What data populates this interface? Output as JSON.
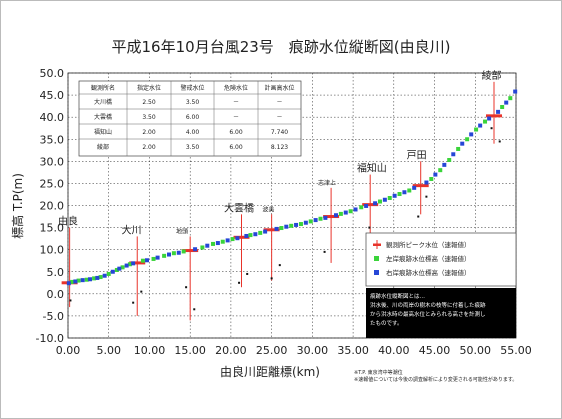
{
  "chart_data": {
    "type": "scatter",
    "title": "平成16年10月台風23号　痕跡水位縦断図(由良川)",
    "xlabel": "由良川距離標(km)",
    "ylabel": "標高 T.P(m)",
    "xlim": [
      0,
      55
    ],
    "ylim": [
      -10,
      50
    ],
    "x_ticks": [
      "0.00",
      "5.00",
      "10.00",
      "15.00",
      "20.00",
      "25.00",
      "30.00",
      "35.00",
      "40.00",
      "45.00",
      "50.00",
      "55.00"
    ],
    "y_ticks": [
      "-10.0",
      "-5.0",
      "0.0",
      "5.0",
      "10.0",
      "15.0",
      "20.0",
      "25.0",
      "30.0",
      "35.0",
      "40.0",
      "45.0",
      "50.0"
    ],
    "grid": true,
    "station_labels": [
      {
        "text": "由良",
        "x": 0.0,
        "small": false
      },
      {
        "text": "大川",
        "x": 7.8,
        "small": false
      },
      {
        "text": "地頭",
        "x": 14.0,
        "small": true
      },
      {
        "text": "大雲橋",
        "x": 21.0,
        "small": false
      },
      {
        "text": "波美",
        "x": 24.6,
        "small": true
      },
      {
        "text": "志津上",
        "x": 31.8,
        "small": true
      },
      {
        "text": "福知山",
        "x": 37.3,
        "small": false
      },
      {
        "text": "戸田",
        "x": 42.8,
        "small": false
      },
      {
        "text": "綾部",
        "x": 52.0,
        "small": false
      }
    ],
    "peak_marks": [
      {
        "x": 0.2,
        "y": 2.5,
        "bar": [
          -3,
          15
        ]
      },
      {
        "x": 8.5,
        "y": 7.0,
        "bar": [
          -5,
          13
        ]
      },
      {
        "x": 15.0,
        "y": 9.8,
        "bar": [
          -6,
          13
        ]
      },
      {
        "x": 21.3,
        "y": 12.8,
        "bar": [
          1.5,
          18
        ]
      },
      {
        "x": 25.0,
        "y": 14.5,
        "bar": [
          3,
          18
        ]
      },
      {
        "x": 32.3,
        "y": 17.5,
        "bar": [
          7,
          24
        ]
      },
      {
        "x": 37.1,
        "y": 20.2,
        "bar": [
          4,
          27
        ]
      },
      {
        "x": 43.3,
        "y": 24.5,
        "bar": [
          18,
          30
        ]
      },
      {
        "x": 52.3,
        "y": 40.3,
        "bar": [
          34,
          48
        ]
      }
    ],
    "series": [
      {
        "name": "観測所ピーク水位（速報値）",
        "color": "#e8332a",
        "points": [
          [
            0.2,
            2.5
          ],
          [
            8.5,
            7.0
          ],
          [
            15.0,
            9.8
          ],
          [
            21.3,
            12.8
          ],
          [
            25.0,
            14.5
          ],
          [
            32.3,
            17.5
          ],
          [
            37.1,
            20.2
          ],
          [
            43.3,
            24.5
          ],
          [
            52.3,
            40.3
          ]
        ]
      },
      {
        "name": "左岸痕跡水位標高（速報値）",
        "color": "#3ad43a",
        "points": [
          [
            0.5,
            2.7
          ],
          [
            1.3,
            3.0
          ],
          [
            2.3,
            3.2
          ],
          [
            3.2,
            3.5
          ],
          [
            4.0,
            3.8
          ],
          [
            5.0,
            4.5
          ],
          [
            6.0,
            5.4
          ],
          [
            6.7,
            6.0
          ],
          [
            7.6,
            6.7
          ],
          [
            9.2,
            7.5
          ],
          [
            10.5,
            7.9
          ],
          [
            11.8,
            8.6
          ],
          [
            13.0,
            9.2
          ],
          [
            14.2,
            9.6
          ],
          [
            16.5,
            10.5
          ],
          [
            17.8,
            11.3
          ],
          [
            19.0,
            11.8
          ],
          [
            20.2,
            12.4
          ],
          [
            22.4,
            13.3
          ],
          [
            23.6,
            13.8
          ],
          [
            26.2,
            14.9
          ],
          [
            27.4,
            15.4
          ],
          [
            28.6,
            15.8
          ],
          [
            29.8,
            16.4
          ],
          [
            31.0,
            17.0
          ],
          [
            33.5,
            18.1
          ],
          [
            34.7,
            18.7
          ],
          [
            36.0,
            19.6
          ],
          [
            38.3,
            20.9
          ],
          [
            39.5,
            21.7
          ],
          [
            40.7,
            22.6
          ],
          [
            41.9,
            23.4
          ],
          [
            44.6,
            26.0
          ],
          [
            45.7,
            28.0
          ],
          [
            46.8,
            30.3
          ],
          [
            47.9,
            32.8
          ],
          [
            49.0,
            35.0
          ],
          [
            50.1,
            37.2
          ],
          [
            51.2,
            39.0
          ],
          [
            53.3,
            42.3
          ],
          [
            54.3,
            44.3
          ]
        ]
      },
      {
        "name": "右岸痕跡水位標高（速報値）",
        "color": "#2646d6",
        "points": [
          [
            0.1,
            2.4
          ],
          [
            0.9,
            2.8
          ],
          [
            1.8,
            3.1
          ],
          [
            2.7,
            3.3
          ],
          [
            3.6,
            3.6
          ],
          [
            4.5,
            4.1
          ],
          [
            5.5,
            5.0
          ],
          [
            6.3,
            5.7
          ],
          [
            7.2,
            6.4
          ],
          [
            8.0,
            6.9
          ],
          [
            9.7,
            7.6
          ],
          [
            11.0,
            8.2
          ],
          [
            12.4,
            8.9
          ],
          [
            13.6,
            9.3
          ],
          [
            15.6,
            10.1
          ],
          [
            17.1,
            10.9
          ],
          [
            18.4,
            11.5
          ],
          [
            19.6,
            12.1
          ],
          [
            20.8,
            12.6
          ],
          [
            21.9,
            13.1
          ],
          [
            23.0,
            13.5
          ],
          [
            24.2,
            14.1
          ],
          [
            25.6,
            14.7
          ],
          [
            26.8,
            15.2
          ],
          [
            28.0,
            15.6
          ],
          [
            29.2,
            16.1
          ],
          [
            30.4,
            16.7
          ],
          [
            31.6,
            17.2
          ],
          [
            32.9,
            17.8
          ],
          [
            34.1,
            18.4
          ],
          [
            35.3,
            19.1
          ],
          [
            36.6,
            19.9
          ],
          [
            37.7,
            20.5
          ],
          [
            38.9,
            21.3
          ],
          [
            40.1,
            22.2
          ],
          [
            41.3,
            23.0
          ],
          [
            42.5,
            24.0
          ],
          [
            44.0,
            25.2
          ],
          [
            45.1,
            27.0
          ],
          [
            46.2,
            29.2
          ],
          [
            47.3,
            31.6
          ],
          [
            48.4,
            34.0
          ],
          [
            49.5,
            36.1
          ],
          [
            50.6,
            38.1
          ],
          [
            51.7,
            39.7
          ],
          [
            52.8,
            41.2
          ],
          [
            53.8,
            43.3
          ],
          [
            54.9,
            45.8
          ]
        ]
      }
    ],
    "ground_dots": [
      [
        0.3,
        -1.5
      ],
      [
        8.0,
        -2.0
      ],
      [
        9.0,
        0.5
      ],
      [
        14.5,
        1.5
      ],
      [
        15.5,
        -3.5
      ],
      [
        21.0,
        2.5
      ],
      [
        22.0,
        4.5
      ],
      [
        25.0,
        3.5
      ],
      [
        26.0,
        6.5
      ],
      [
        31.5,
        9.5
      ],
      [
        37.0,
        15.0
      ],
      [
        38.0,
        12.5
      ],
      [
        43.0,
        17.5
      ],
      [
        44.0,
        22.0
      ],
      [
        52.0,
        37.5
      ],
      [
        53.0,
        34.5
      ]
    ]
  },
  "station_table": {
    "headers": [
      "観測所名",
      "指定水位",
      "警戒水位",
      "危険水位",
      "計画高水位"
    ],
    "rows": [
      [
        "大川橋",
        "2.50",
        "3.50",
        "－",
        "－"
      ],
      [
        "大雲橋",
        "3.50",
        "6.00",
        "－",
        "－"
      ],
      [
        "福知山",
        "2.00",
        "4.00",
        "6.00",
        "7.740"
      ],
      [
        "綾部",
        "2.00",
        "3.50",
        "6.00",
        "8.123"
      ]
    ]
  },
  "legend": [
    {
      "label": "観測所ピーク水位（速報値）",
      "kind": "line",
      "color": "#e8332a"
    },
    {
      "label": "左岸痕跡水位標高（速報値）",
      "kind": "square",
      "color": "#3ad43a"
    },
    {
      "label": "右岸痕跡水位標高（速報値）",
      "kind": "square",
      "color": "#2646d6"
    }
  ],
  "note": {
    "lines": [
      "痕跡水位縦断図とは…",
      "洪水後、川の両岸の樹木の枝等に付着した痕跡",
      "から洪水時の最高水位とみられる高さを計測し",
      "たものです。"
    ]
  },
  "footnotes": {
    "credit": "※T.P. 東京湾中等潮位",
    "disclaimer": "※速報値については今後の調査解析により変更される可能性があります。"
  }
}
